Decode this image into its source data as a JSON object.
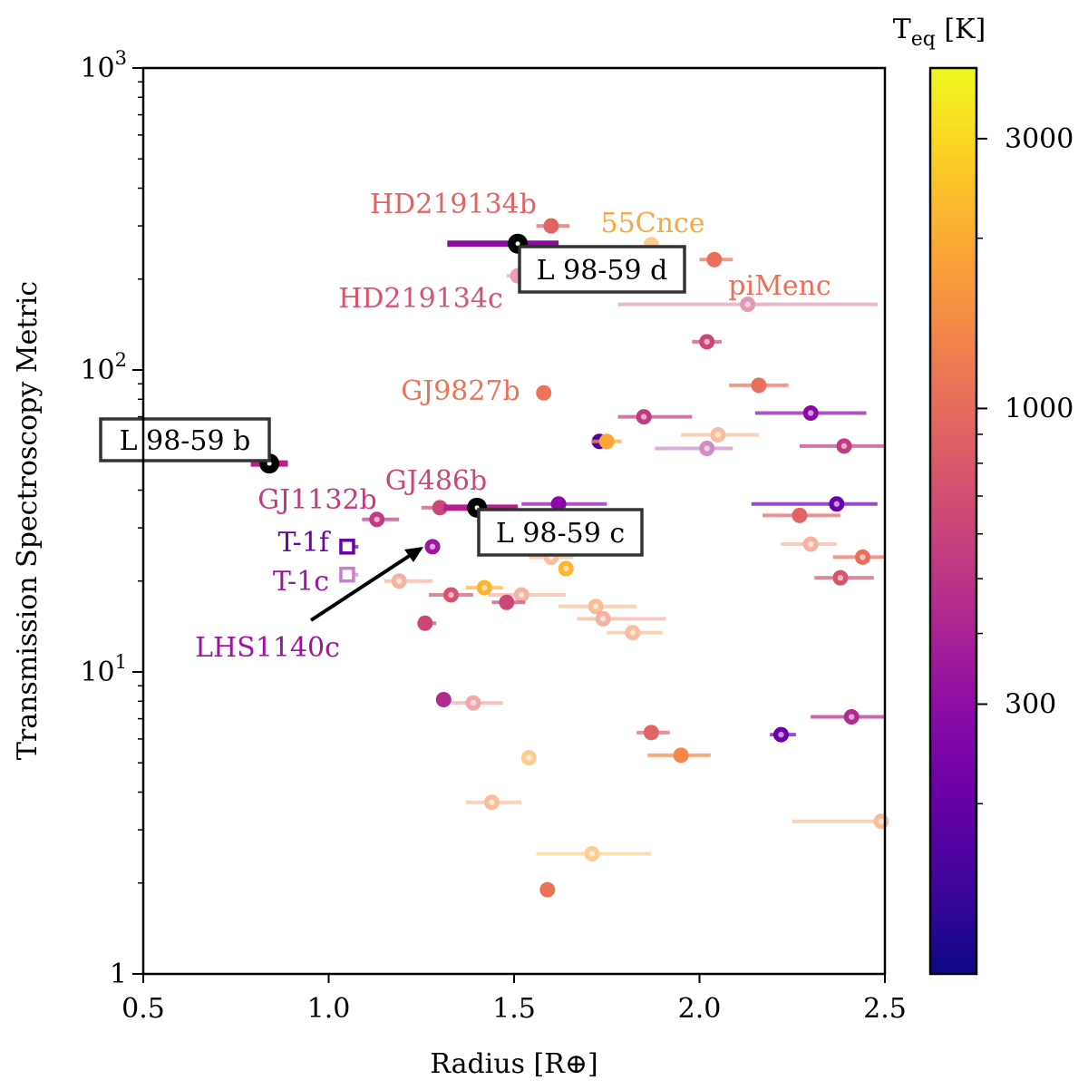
{
  "chart_data": {
    "type": "scatter",
    "title": "",
    "xlabel": "Radius [R⊕]",
    "ylabel": "Transmission Spectroscopy Metric",
    "xlim": [
      0.5,
      2.5
    ],
    "ylim": [
      1,
      1000
    ],
    "yscale": "log",
    "xticks": [
      "0.5",
      "1.0",
      "1.5",
      "2.0",
      "2.5"
    ],
    "yticks": [
      {
        "base": "1",
        "exp": ""
      },
      {
        "base": "10",
        "exp": "1"
      },
      {
        "base": "10",
        "exp": "2"
      },
      {
        "base": "10",
        "exp": "3"
      }
    ],
    "colorbar": {
      "label_main": "T",
      "label_sub": "eq",
      "label_unit": " [K]",
      "scale": "log",
      "range": [
        100,
        4000
      ],
      "ticks": [
        {
          "value": 300,
          "label": "300"
        },
        {
          "value": 1000,
          "label": "1000"
        },
        {
          "value": 3000,
          "label": "3000"
        }
      ],
      "colormap": "plasma"
    },
    "targets": [
      {
        "name": "L 98-59 b",
        "radius": 0.84,
        "tsm": 49,
        "rmin": 0.79,
        "rmax": 0.89,
        "color": "#b71f8f"
      },
      {
        "name": "L 98-59 c",
        "radius": 1.4,
        "tsm": 35,
        "rmin": 1.31,
        "rmax": 1.51,
        "color": "#b71f8f"
      },
      {
        "name": "L 98-59 d",
        "radius": 1.51,
        "tsm": 262,
        "rmin": 1.32,
        "rmax": 1.62,
        "color": "#8b0aa5"
      }
    ],
    "labeled_planets": [
      {
        "name": "HD219134b",
        "radius": 1.6,
        "tsm": 300,
        "color": "#e16462"
      },
      {
        "name": "HD219134c",
        "radius": 1.51,
        "tsm": 205,
        "color": "#d5546e"
      },
      {
        "name": "55Cnce",
        "radius": 1.87,
        "tsm": 260,
        "color": "#fca636"
      },
      {
        "name": "piMenc",
        "radius": 2.04,
        "tsm": 232,
        "color": "#e8705b"
      },
      {
        "name": "GJ9827b",
        "radius": 1.58,
        "tsm": 84,
        "color": "#ea7457"
      },
      {
        "name": "GJ486b",
        "radius": 1.3,
        "tsm": 35,
        "color": "#cc4778"
      },
      {
        "name": "GJ1132b",
        "radius": 1.13,
        "tsm": 32,
        "color": "#c13b82"
      },
      {
        "name": "T-1f",
        "radius": 1.05,
        "tsm": 26,
        "color": "#6a00a8"
      },
      {
        "name": "T-1c",
        "radius": 1.05,
        "tsm": 21,
        "color": "#9c179e"
      },
      {
        "name": "LHS1140c",
        "radius": 1.28,
        "tsm": 26,
        "color": "#9c179e"
      }
    ],
    "points": [
      {
        "r": 1.6,
        "tsm": 300,
        "lo": 1.56,
        "hi": 1.65,
        "c": "#e16462",
        "hollow": false,
        "faint": false
      },
      {
        "r": 1.51,
        "tsm": 205,
        "lo": 1.48,
        "hi": 1.54,
        "c": "#d5546e",
        "hollow": false,
        "faint": true
      },
      {
        "r": 1.87,
        "tsm": 260,
        "lo": 1.85,
        "hi": 1.89,
        "c": "#fca636",
        "hollow": false,
        "faint": true
      },
      {
        "r": 2.04,
        "tsm": 232,
        "lo": 2.0,
        "hi": 2.09,
        "c": "#e8705b",
        "hollow": false,
        "faint": false
      },
      {
        "r": 2.13,
        "tsm": 165,
        "lo": 1.78,
        "hi": 2.48,
        "c": "#cc4778",
        "hollow": true,
        "faint": true
      },
      {
        "r": 2.02,
        "tsm": 124,
        "lo": 1.98,
        "hi": 2.06,
        "c": "#cc4778",
        "hollow": true,
        "faint": false
      },
      {
        "r": 1.58,
        "tsm": 84,
        "lo": 1.56,
        "hi": 1.6,
        "c": "#ea7457",
        "hollow": false,
        "faint": false
      },
      {
        "r": 2.16,
        "tsm": 89,
        "lo": 2.08,
        "hi": 2.24,
        "c": "#e8705b",
        "hollow": false,
        "faint": false
      },
      {
        "r": 2.3,
        "tsm": 72,
        "lo": 2.15,
        "hi": 2.45,
        "c": "#8b0aa5",
        "hollow": true,
        "faint": false
      },
      {
        "r": 1.85,
        "tsm": 70,
        "lo": 1.78,
        "hi": 1.98,
        "c": "#c13b82",
        "hollow": true,
        "faint": false
      },
      {
        "r": 1.73,
        "tsm": 58,
        "lo": 1.71,
        "hi": 1.76,
        "c": "#5302a3",
        "hollow": false,
        "faint": false
      },
      {
        "r": 1.75,
        "tsm": 58,
        "lo": 1.71,
        "hi": 1.79,
        "c": "#fca636",
        "hollow": false,
        "faint": false
      },
      {
        "r": 2.05,
        "tsm": 61,
        "lo": 1.95,
        "hi": 2.16,
        "c": "#f48849",
        "hollow": true,
        "faint": true
      },
      {
        "r": 2.02,
        "tsm": 55,
        "lo": 1.88,
        "hi": 2.09,
        "c": "#b12a90",
        "hollow": true,
        "faint": true
      },
      {
        "r": 2.39,
        "tsm": 56,
        "lo": 2.27,
        "hi": 2.5,
        "c": "#c13b82",
        "hollow": true,
        "faint": false
      },
      {
        "r": 1.62,
        "tsm": 36,
        "lo": 1.52,
        "hi": 1.75,
        "c": "#8b0aa5",
        "hollow": false,
        "faint": false
      },
      {
        "r": 1.3,
        "tsm": 35,
        "lo": 1.25,
        "hi": 1.38,
        "c": "#cc4778",
        "hollow": false,
        "faint": false
      },
      {
        "r": 1.13,
        "tsm": 32,
        "lo": 1.09,
        "hi": 1.19,
        "c": "#c13b82",
        "hollow": true,
        "faint": false
      },
      {
        "r": 2.37,
        "tsm": 36,
        "lo": 2.14,
        "hi": 2.48,
        "c": "#6a00a8",
        "hollow": true,
        "faint": false
      },
      {
        "r": 2.27,
        "tsm": 33,
        "lo": 2.17,
        "hi": 2.38,
        "c": "#e16462",
        "hollow": false,
        "faint": false
      },
      {
        "r": 1.63,
        "tsm": 31,
        "lo": 1.55,
        "hi": 1.72,
        "c": "#f89540",
        "hollow": true,
        "faint": true
      },
      {
        "r": 2.3,
        "tsm": 26.5,
        "lo": 2.22,
        "hi": 2.37,
        "c": "#ea7457",
        "hollow": true,
        "faint": true
      },
      {
        "r": 1.28,
        "tsm": 26,
        "lo": 1.26,
        "hi": 1.3,
        "c": "#9c179e",
        "hollow": true,
        "faint": false
      },
      {
        "r": 1.05,
        "tsm": 26,
        "lo": 1.03,
        "hi": 1.08,
        "c": "#6a00a8",
        "hollow": true,
        "faint": false,
        "square": true
      },
      {
        "r": 1.05,
        "tsm": 21,
        "lo": 1.03,
        "hi": 1.08,
        "c": "#9c179e",
        "hollow": true,
        "faint": true,
        "square": true
      },
      {
        "r": 2.44,
        "tsm": 24,
        "lo": 2.36,
        "hi": 2.5,
        "c": "#e8705b",
        "hollow": true,
        "faint": false
      },
      {
        "r": 1.6,
        "tsm": 24,
        "lo": 1.54,
        "hi": 1.66,
        "c": "#f48849",
        "hollow": true,
        "faint": true
      },
      {
        "r": 1.64,
        "tsm": 22,
        "lo": 1.62,
        "hi": 1.66,
        "c": "#fdb42f",
        "hollow": true,
        "faint": false
      },
      {
        "r": 2.38,
        "tsm": 20.5,
        "lo": 2.31,
        "hi": 2.47,
        "c": "#d5546e",
        "hollow": true,
        "faint": false
      },
      {
        "r": 1.19,
        "tsm": 20,
        "lo": 1.15,
        "hi": 1.28,
        "c": "#ea7457",
        "hollow": true,
        "faint": true
      },
      {
        "r": 1.42,
        "tsm": 19,
        "lo": 1.37,
        "hi": 1.47,
        "c": "#fdb42f",
        "hollow": true,
        "faint": false
      },
      {
        "r": 1.33,
        "tsm": 18,
        "lo": 1.27,
        "hi": 1.39,
        "c": "#d5546e",
        "hollow": true,
        "faint": false
      },
      {
        "r": 1.52,
        "tsm": 18,
        "lo": 1.43,
        "hi": 1.64,
        "c": "#ea7457",
        "hollow": true,
        "faint": true
      },
      {
        "r": 1.48,
        "tsm": 17,
        "lo": 1.44,
        "hi": 1.53,
        "c": "#cc4778",
        "hollow": false,
        "faint": false
      },
      {
        "r": 1.72,
        "tsm": 16.5,
        "lo": 1.62,
        "hi": 1.83,
        "c": "#f48849",
        "hollow": true,
        "faint": true
      },
      {
        "r": 1.74,
        "tsm": 15,
        "lo": 1.67,
        "hi": 1.91,
        "c": "#ea7457",
        "hollow": true,
        "faint": true
      },
      {
        "r": 1.26,
        "tsm": 14.5,
        "lo": 1.24,
        "hi": 1.29,
        "c": "#cc4778",
        "hollow": false,
        "faint": false
      },
      {
        "r": 1.82,
        "tsm": 13.5,
        "lo": 1.75,
        "hi": 1.9,
        "c": "#f48849",
        "hollow": true,
        "faint": true
      },
      {
        "r": 1.31,
        "tsm": 8.1,
        "lo": 1.3,
        "hi": 1.32,
        "c": "#b12a90",
        "hollow": false,
        "faint": false
      },
      {
        "r": 1.39,
        "tsm": 7.9,
        "lo": 1.33,
        "hi": 1.47,
        "c": "#e16462",
        "hollow": true,
        "faint": true
      },
      {
        "r": 2.41,
        "tsm": 7.1,
        "lo": 2.3,
        "hi": 2.5,
        "c": "#b12a90",
        "hollow": true,
        "faint": false
      },
      {
        "r": 1.87,
        "tsm": 6.3,
        "lo": 1.83,
        "hi": 1.92,
        "c": "#e16462",
        "hollow": false,
        "faint": false
      },
      {
        "r": 2.22,
        "tsm": 6.2,
        "lo": 2.19,
        "hi": 2.26,
        "c": "#6a00a8",
        "hollow": true,
        "faint": false
      },
      {
        "r": 1.54,
        "tsm": 5.2,
        "lo": 1.53,
        "hi": 1.55,
        "c": "#fca636",
        "hollow": true,
        "faint": true
      },
      {
        "r": 1.95,
        "tsm": 5.3,
        "lo": 1.86,
        "hi": 2.03,
        "c": "#f48849",
        "hollow": false,
        "faint": false
      },
      {
        "r": 1.44,
        "tsm": 3.7,
        "lo": 1.37,
        "hi": 1.52,
        "c": "#f48849",
        "hollow": true,
        "faint": true
      },
      {
        "r": 2.49,
        "tsm": 3.2,
        "lo": 2.25,
        "hi": 2.5,
        "c": "#f48849",
        "hollow": true,
        "faint": true
      },
      {
        "r": 1.71,
        "tsm": 2.5,
        "lo": 1.56,
        "hi": 1.87,
        "c": "#fca636",
        "hollow": true,
        "faint": true
      },
      {
        "r": 1.59,
        "tsm": 1.9,
        "lo": 1.58,
        "hi": 1.6,
        "c": "#ea7457",
        "hollow": false,
        "faint": false
      }
    ]
  }
}
